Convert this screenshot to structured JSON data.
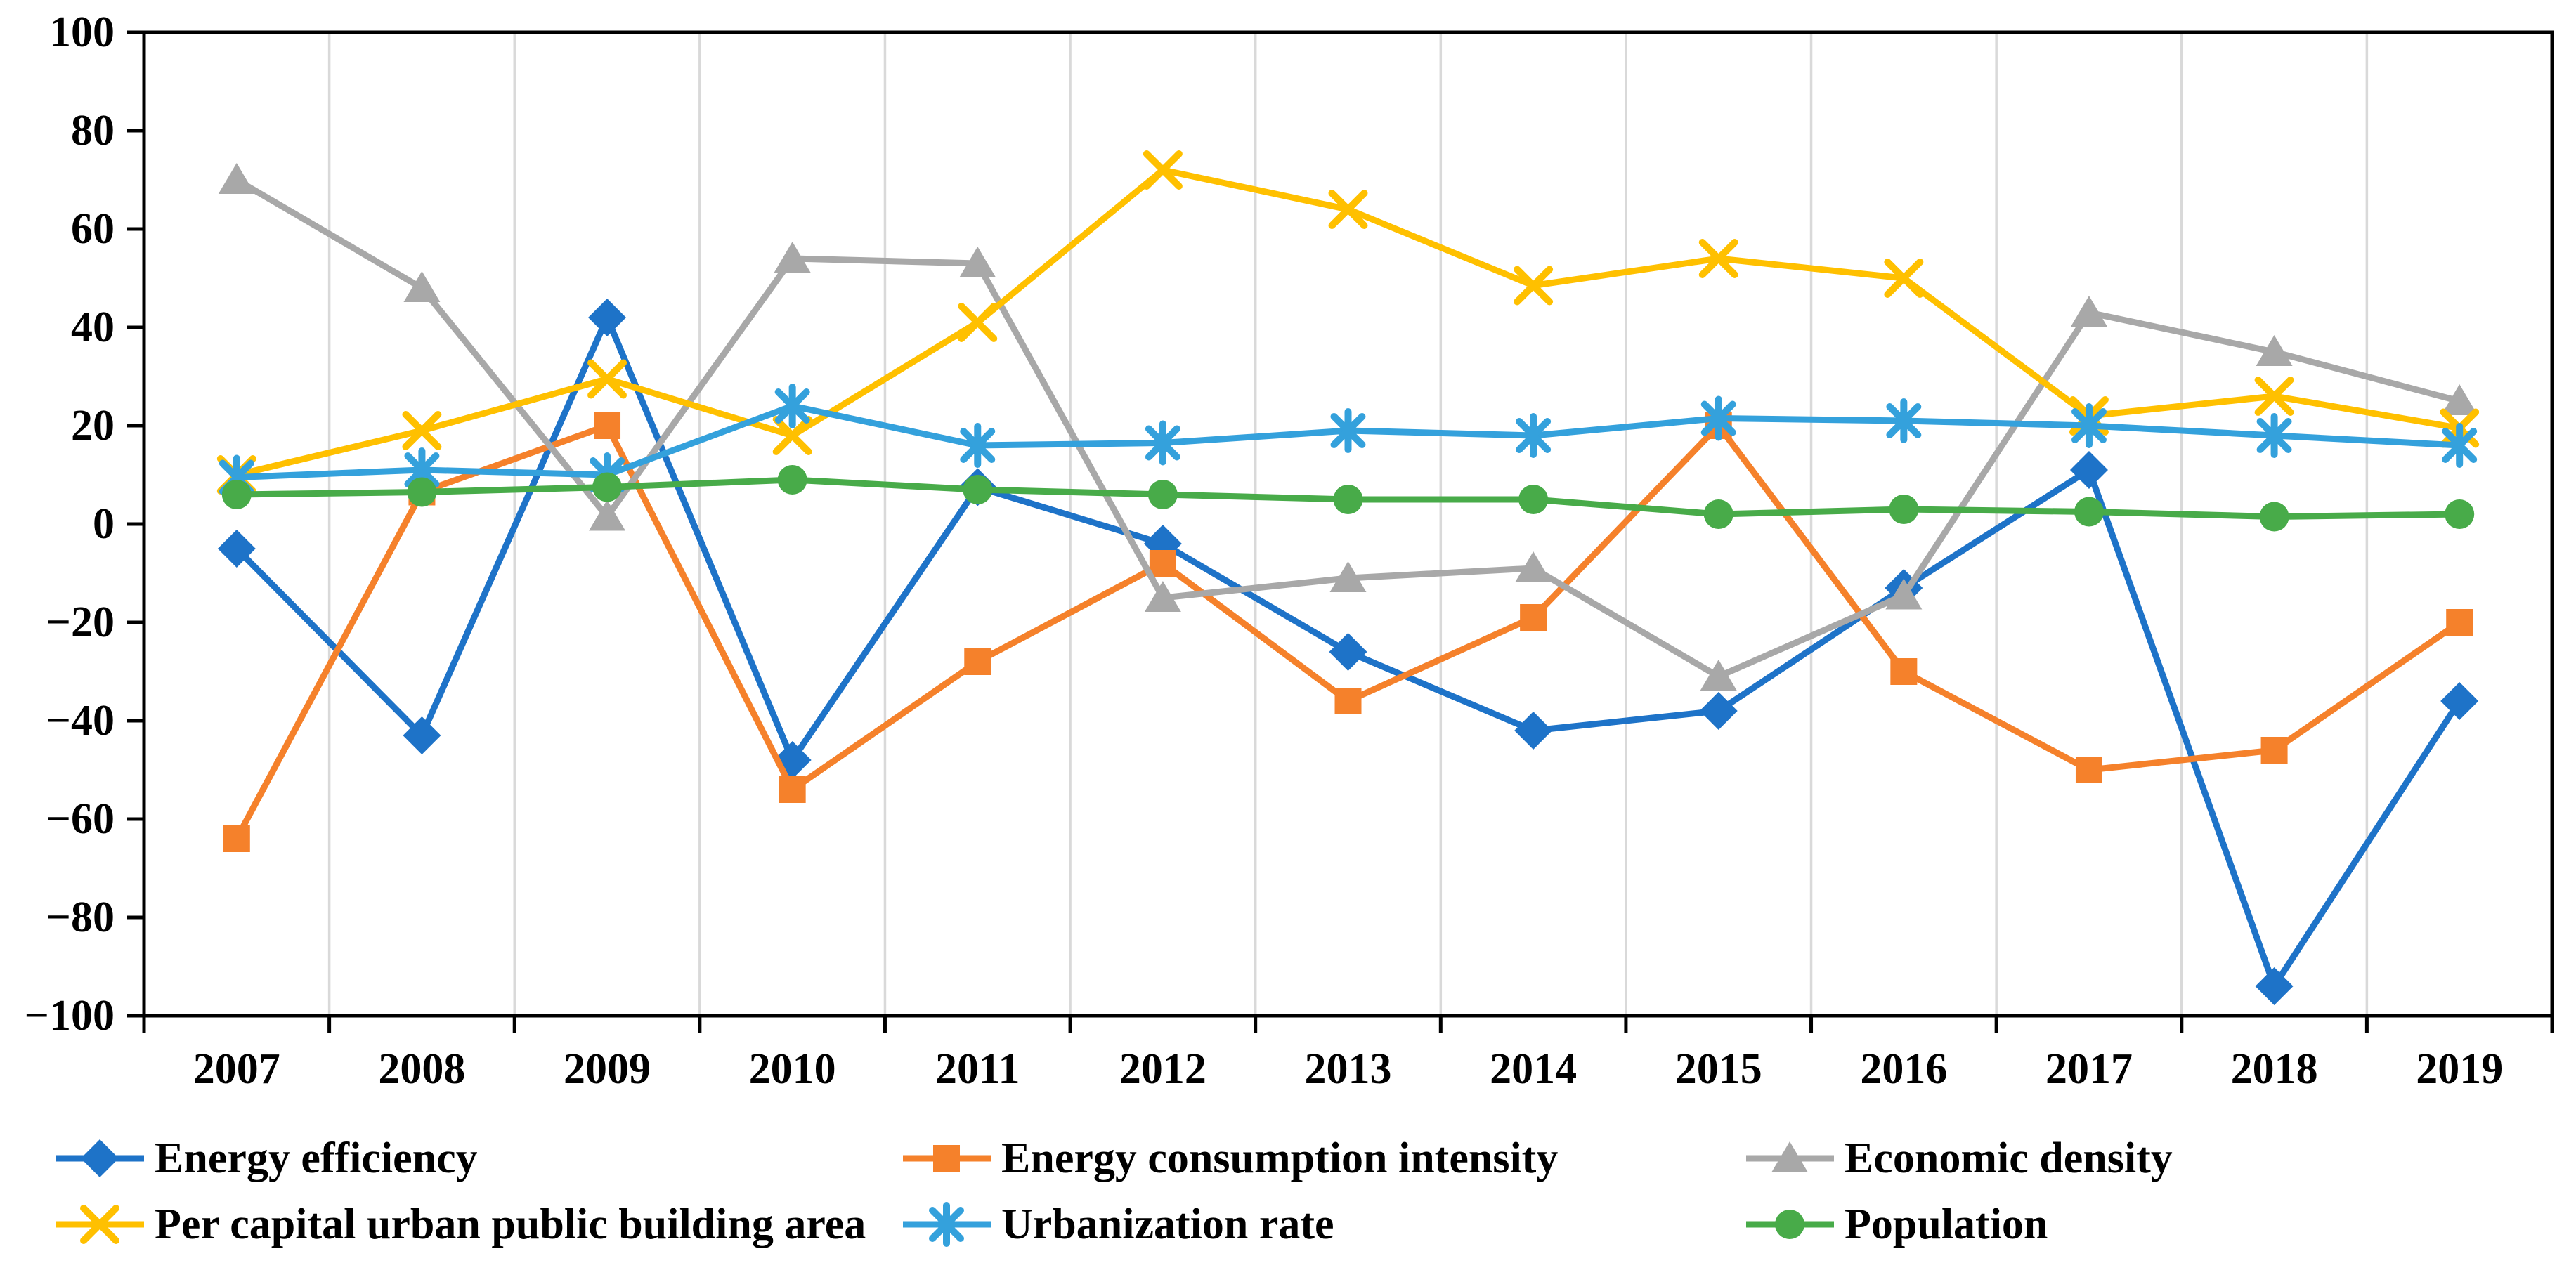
{
  "chart_data": {
    "type": "line",
    "title": "",
    "categories": [
      "2007",
      "2008",
      "2009",
      "2010",
      "2011",
      "2012",
      "2013",
      "2014",
      "2015",
      "2016",
      "2017",
      "2018",
      "2019"
    ],
    "xlabel": "",
    "ylabel": "",
    "ylim": [
      -100,
      100
    ],
    "ytick_step": 20,
    "y_tick_labels": [
      "100",
      "80",
      "60",
      "40",
      "20",
      "0",
      "−20",
      "−40",
      "−60",
      "−80",
      "−100"
    ],
    "grid": "vertical category-boundary gridlines only",
    "gridline_color": "#D9D9D9",
    "axis_color": "#000000",
    "plot_border": true,
    "legend_position": "bottom, 2 rows x 3 columns",
    "series": [
      {
        "name": "Energy efficiency",
        "color": "#1E73C8",
        "marker": "diamond",
        "values": [
          -5,
          -43,
          42,
          -48,
          7.5,
          -4,
          -26,
          -42,
          -38,
          -13,
          11,
          -94,
          -36
        ]
      },
      {
        "name": "Energy consumption intensity",
        "color": "#F5812B",
        "marker": "square",
        "values": [
          -64,
          6.5,
          20,
          -54,
          -28,
          -8,
          -36,
          -19,
          20,
          -30,
          -50,
          -46,
          -20
        ]
      },
      {
        "name": "Economic density",
        "color": "#A8A8A8",
        "marker": "triangle",
        "values": [
          70,
          48,
          1.5,
          54,
          53,
          -15,
          -11,
          -9,
          -31,
          -14.5,
          43,
          35,
          25
        ]
      },
      {
        "name": "Per capital urban public building area",
        "color": "#FFC000",
        "marker": "x",
        "values": [
          10,
          19,
          29.5,
          18,
          41,
          72,
          64,
          48.5,
          54,
          50,
          22,
          26,
          19.5
        ]
      },
      {
        "name": "Urbanization rate",
        "color": "#34A1DC",
        "marker": "asterisk",
        "values": [
          9.5,
          11,
          10,
          24,
          16,
          16.5,
          19,
          18,
          21.5,
          21,
          20,
          18,
          16
        ]
      },
      {
        "name": "Population",
        "color": "#48AB49",
        "marker": "circle",
        "values": [
          6,
          6.5,
          7.5,
          9,
          7,
          6,
          5,
          5,
          2,
          3,
          2.5,
          1.5,
          2
        ]
      }
    ]
  }
}
